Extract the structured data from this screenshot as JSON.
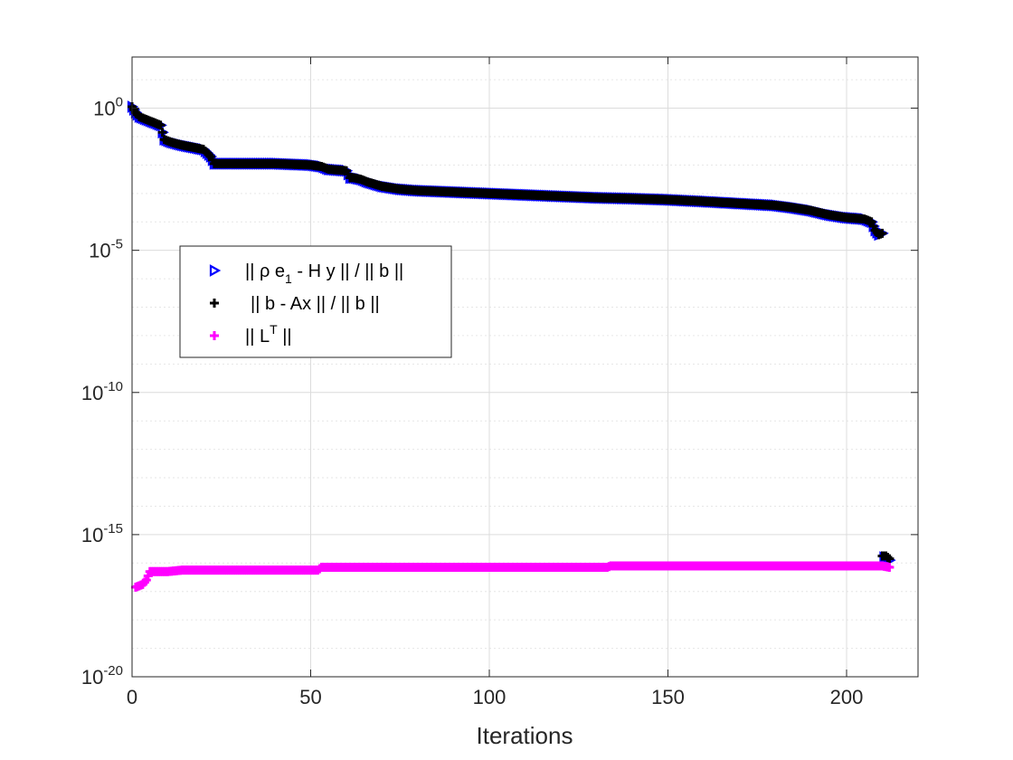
{
  "chart_data": {
    "type": "scatter",
    "title": "",
    "xlabel": "Iterations",
    "ylabel": "",
    "xlim": [
      0,
      220
    ],
    "ylim_log10": [
      -20,
      1.8
    ],
    "yscale": "log",
    "grid": true,
    "minor_grid": true,
    "legend_position": "left-middle",
    "x_ticks": [
      0,
      50,
      100,
      150,
      200
    ],
    "x_tick_labels": [
      "0",
      "50",
      "100",
      "150",
      "200"
    ],
    "y_ticks_log10": [
      0,
      -5,
      -10,
      -15,
      -20
    ],
    "y_tick_labels": [
      {
        "base": "10",
        "exp": "0"
      },
      {
        "base": "10",
        "exp": "-5"
      },
      {
        "base": "10",
        "exp": "-10"
      },
      {
        "base": "10",
        "exp": "-15"
      },
      {
        "base": "10",
        "exp": "-20"
      }
    ],
    "series": [
      {
        "name": "|| ρ e_1 - H y || / || b ||",
        "legend": {
          "pre": "|| ρ e",
          "sub": "1",
          "post": " - H y || / || b ||"
        },
        "marker": "triangle-right",
        "color": "#0000ff",
        "points": [
          [
            0,
            0.05
          ],
          [
            1,
            -0.15
          ],
          [
            2,
            -0.3
          ],
          [
            4,
            -0.4
          ],
          [
            6,
            -0.5
          ],
          [
            8,
            -0.6
          ],
          [
            9,
            -1.1
          ],
          [
            11,
            -1.2
          ],
          [
            14,
            -1.3
          ],
          [
            16,
            -1.35
          ],
          [
            18,
            -1.4
          ],
          [
            20,
            -1.45
          ],
          [
            22,
            -1.7
          ],
          [
            23,
            -1.95
          ],
          [
            24,
            -1.95
          ],
          [
            30,
            -1.95
          ],
          [
            40,
            -1.95
          ],
          [
            50,
            -2.0
          ],
          [
            53,
            -2.05
          ],
          [
            55,
            -2.15
          ],
          [
            60,
            -2.2
          ],
          [
            61,
            -2.45
          ],
          [
            62,
            -2.45
          ],
          [
            64,
            -2.5
          ],
          [
            66,
            -2.6
          ],
          [
            70,
            -2.75
          ],
          [
            75,
            -2.85
          ],
          [
            80,
            -2.9
          ],
          [
            90,
            -2.95
          ],
          [
            100,
            -3.0
          ],
          [
            110,
            -3.05
          ],
          [
            120,
            -3.1
          ],
          [
            130,
            -3.15
          ],
          [
            140,
            -3.18
          ],
          [
            150,
            -3.22
          ],
          [
            160,
            -3.28
          ],
          [
            170,
            -3.35
          ],
          [
            180,
            -3.42
          ],
          [
            185,
            -3.5
          ],
          [
            190,
            -3.6
          ],
          [
            195,
            -3.75
          ],
          [
            200,
            -3.85
          ],
          [
            205,
            -3.9
          ],
          [
            207,
            -4.0
          ],
          [
            208,
            -4.3
          ],
          [
            209,
            -4.45
          ],
          [
            210,
            -4.4
          ],
          [
            210.5,
            -15.8
          ],
          [
            211,
            -15.8
          ],
          [
            212,
            -15.9
          ]
        ]
      },
      {
        "name": "|| b - Ax || / || b ||",
        "legend": {
          "pre": "|| b - Ax || / || b ||",
          "sub": "",
          "post": ""
        },
        "marker": "plus",
        "color": "#000000",
        "points": [
          [
            0,
            0.05
          ],
          [
            1,
            -0.15
          ],
          [
            2,
            -0.3
          ],
          [
            4,
            -0.4
          ],
          [
            6,
            -0.5
          ],
          [
            8,
            -0.6
          ],
          [
            9,
            -1.1
          ],
          [
            11,
            -1.2
          ],
          [
            14,
            -1.3
          ],
          [
            16,
            -1.35
          ],
          [
            18,
            -1.4
          ],
          [
            20,
            -1.45
          ],
          [
            22,
            -1.7
          ],
          [
            23,
            -1.95
          ],
          [
            24,
            -1.95
          ],
          [
            30,
            -1.95
          ],
          [
            40,
            -1.95
          ],
          [
            50,
            -2.0
          ],
          [
            53,
            -2.05
          ],
          [
            55,
            -2.15
          ],
          [
            60,
            -2.2
          ],
          [
            61,
            -2.45
          ],
          [
            62,
            -2.45
          ],
          [
            64,
            -2.5
          ],
          [
            66,
            -2.6
          ],
          [
            70,
            -2.75
          ],
          [
            75,
            -2.85
          ],
          [
            80,
            -2.9
          ],
          [
            90,
            -2.95
          ],
          [
            100,
            -3.0
          ],
          [
            110,
            -3.05
          ],
          [
            120,
            -3.1
          ],
          [
            130,
            -3.15
          ],
          [
            140,
            -3.18
          ],
          [
            150,
            -3.22
          ],
          [
            160,
            -3.28
          ],
          [
            170,
            -3.35
          ],
          [
            180,
            -3.42
          ],
          [
            185,
            -3.5
          ],
          [
            190,
            -3.6
          ],
          [
            195,
            -3.75
          ],
          [
            200,
            -3.85
          ],
          [
            205,
            -3.9
          ],
          [
            207,
            -4.0
          ],
          [
            208,
            -4.3
          ],
          [
            209,
            -4.45
          ],
          [
            210,
            -4.4
          ],
          [
            210,
            -15.75
          ],
          [
            211,
            -15.75
          ],
          [
            212,
            -15.85
          ]
        ]
      },
      {
        "name": "|| L^T ||",
        "legend": {
          "pre": "|| L",
          "sup": "T",
          "post": " ||"
        },
        "marker": "plus",
        "color": "#ff00ff",
        "points": [
          [
            1,
            -16.85
          ],
          [
            2,
            -16.8
          ],
          [
            3,
            -16.75
          ],
          [
            4,
            -16.6
          ],
          [
            5,
            -16.3
          ],
          [
            6,
            -16.3
          ],
          [
            10,
            -16.3
          ],
          [
            14,
            -16.25
          ],
          [
            20,
            -16.25
          ],
          [
            30,
            -16.25
          ],
          [
            40,
            -16.25
          ],
          [
            52,
            -16.25
          ],
          [
            53,
            -16.15
          ],
          [
            60,
            -16.15
          ],
          [
            70,
            -16.15
          ],
          [
            80,
            -16.15
          ],
          [
            90,
            -16.15
          ],
          [
            100,
            -16.15
          ],
          [
            110,
            -16.15
          ],
          [
            120,
            -16.15
          ],
          [
            133,
            -16.15
          ],
          [
            134,
            -16.1
          ],
          [
            140,
            -16.1
          ],
          [
            150,
            -16.1
          ],
          [
            160,
            -16.1
          ],
          [
            170,
            -16.1
          ],
          [
            180,
            -16.1
          ],
          [
            190,
            -16.1
          ],
          [
            200,
            -16.1
          ],
          [
            210,
            -16.1
          ],
          [
            212,
            -16.15
          ]
        ]
      }
    ]
  }
}
